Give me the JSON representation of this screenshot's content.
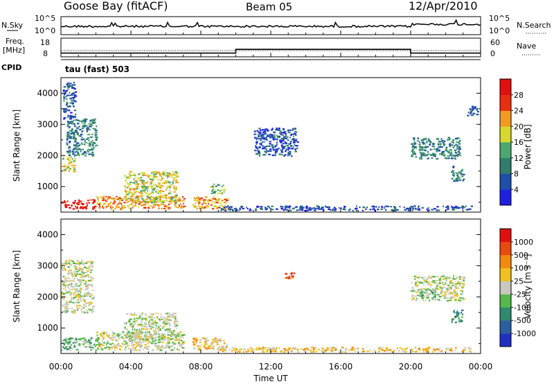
{
  "header": {
    "station": "Goose Bay (fitACF)",
    "beam": "Beam 05",
    "date": "12/Apr/2010"
  },
  "time_axis": {
    "label": "Time UT",
    "ticks": [
      "00:00",
      "04:00",
      "08:00",
      "12:00",
      "16:00",
      "20:00",
      "00:00"
    ]
  },
  "noise_panel": {
    "left_label": "N.Sky",
    "right_label": "N.Search",
    "left_ticks": [
      "10^5",
      "10^0"
    ],
    "right_ticks": [
      "10^5",
      "10^0"
    ]
  },
  "freq_panel": {
    "left_label": "Freq.",
    "left_unit": "[MHz]",
    "right_label": "Nave",
    "left_ticks": [
      "18",
      "8"
    ],
    "right_ticks": [
      "60",
      "0"
    ]
  },
  "cpid": {
    "label": "CPID",
    "mode": "tau (fast) 503"
  },
  "power_panel": {
    "ylabel": "Slant Range [km]",
    "yticks": [
      "4000",
      "3000",
      "2000",
      "1000"
    ],
    "colorbar_label": "Power [dB]",
    "colorbar_ticks": [
      "28",
      "24",
      "20",
      "16",
      "12",
      "8",
      "4"
    ],
    "colors": [
      "#2020e0",
      "#1f4fa8",
      "#2f7d6a",
      "#4aa870",
      "#d7d930",
      "#f19a22",
      "#e83010",
      "#e01010"
    ]
  },
  "velocity_panel": {
    "ylabel": "Slant Range [km]",
    "yticks": [
      "4000",
      "3000",
      "2000",
      "1000"
    ],
    "colorbar_label": "Velocity [m s⁻¹]",
    "colorbar_ticks": [
      "1000",
      "500",
      "100",
      "25",
      "-25",
      "-100",
      "-500",
      "-1000"
    ],
    "colors": [
      "#2030c0",
      "#2c5fa0",
      "#2f8a70",
      "#56b84a",
      "#c8c8c0",
      "#f0c020",
      "#f08a10",
      "#e84a10",
      "#e01010"
    ]
  },
  "chart_data": {
    "type": "heatmap",
    "x_range_hours": [
      0,
      24
    ],
    "range_km": [
      180,
      4500
    ],
    "freq_step": {
      "low_MHz": 10,
      "high_MHz": 12,
      "start_hour": 10,
      "end_hour": 20
    },
    "power_regions": [
      {
        "t0": 0.0,
        "t1": 2.0,
        "r0": 300,
        "r1": 600,
        "level": 7
      },
      {
        "t0": 2.0,
        "t1": 7.0,
        "r0": 300,
        "r1": 700,
        "level": 5
      },
      {
        "t0": 3.6,
        "t1": 6.6,
        "r0": 500,
        "r1": 1500,
        "level": 4
      },
      {
        "t0": 7.5,
        "t1": 9.5,
        "r0": 300,
        "r1": 700,
        "level": 5
      },
      {
        "t0": 8.5,
        "t1": 9.3,
        "r0": 800,
        "r1": 1100,
        "level": 3
      },
      {
        "t0": 0.0,
        "t1": 0.8,
        "r0": 1500,
        "r1": 2000,
        "level": 4
      },
      {
        "t0": 0.3,
        "t1": 2.0,
        "r0": 2000,
        "r1": 3200,
        "level": 2
      },
      {
        "t0": 0.1,
        "t1": 0.8,
        "r0": 3200,
        "r1": 4400,
        "level": 1
      },
      {
        "t0": 9.0,
        "t1": 23.5,
        "r0": 250,
        "r1": 400,
        "level": 1
      },
      {
        "t0": 11.0,
        "t1": 13.5,
        "r0": 2000,
        "r1": 2900,
        "level": 1
      },
      {
        "t0": 20.0,
        "t1": 22.8,
        "r0": 1900,
        "r1": 2600,
        "level": 2
      },
      {
        "t0": 22.3,
        "t1": 23.0,
        "r0": 1200,
        "r1": 1700,
        "level": 2
      },
      {
        "t0": 23.2,
        "t1": 23.8,
        "r0": 3300,
        "r1": 3600,
        "level": 1
      }
    ],
    "velocity_regions": [
      {
        "t0": 0.0,
        "t1": 2.0,
        "r0": 300,
        "r1": 700,
        "level": 3
      },
      {
        "t0": 2.0,
        "t1": 7.0,
        "r0": 300,
        "r1": 900,
        "level": 4
      },
      {
        "t0": 3.6,
        "t1": 6.6,
        "r0": 600,
        "r1": 1500,
        "level": 4
      },
      {
        "t0": 7.5,
        "t1": 9.5,
        "r0": 300,
        "r1": 700,
        "level": 5
      },
      {
        "t0": 0.0,
        "t1": 1.8,
        "r0": 1500,
        "r1": 3200,
        "level": 4
      },
      {
        "t0": 12.8,
        "t1": 13.3,
        "r0": 2600,
        "r1": 2800,
        "level": 7
      },
      {
        "t0": 20.0,
        "t1": 23.0,
        "r0": 1900,
        "r1": 2700,
        "level": 4
      },
      {
        "t0": 20.5,
        "t1": 21.5,
        "r0": 2000,
        "r1": 2300,
        "level": 3
      },
      {
        "t0": 22.3,
        "t1": 23.0,
        "r0": 1200,
        "r1": 1600,
        "level": 2
      },
      {
        "t0": 9.0,
        "t1": 23.5,
        "r0": 250,
        "r1": 400,
        "level": 5
      }
    ]
  }
}
